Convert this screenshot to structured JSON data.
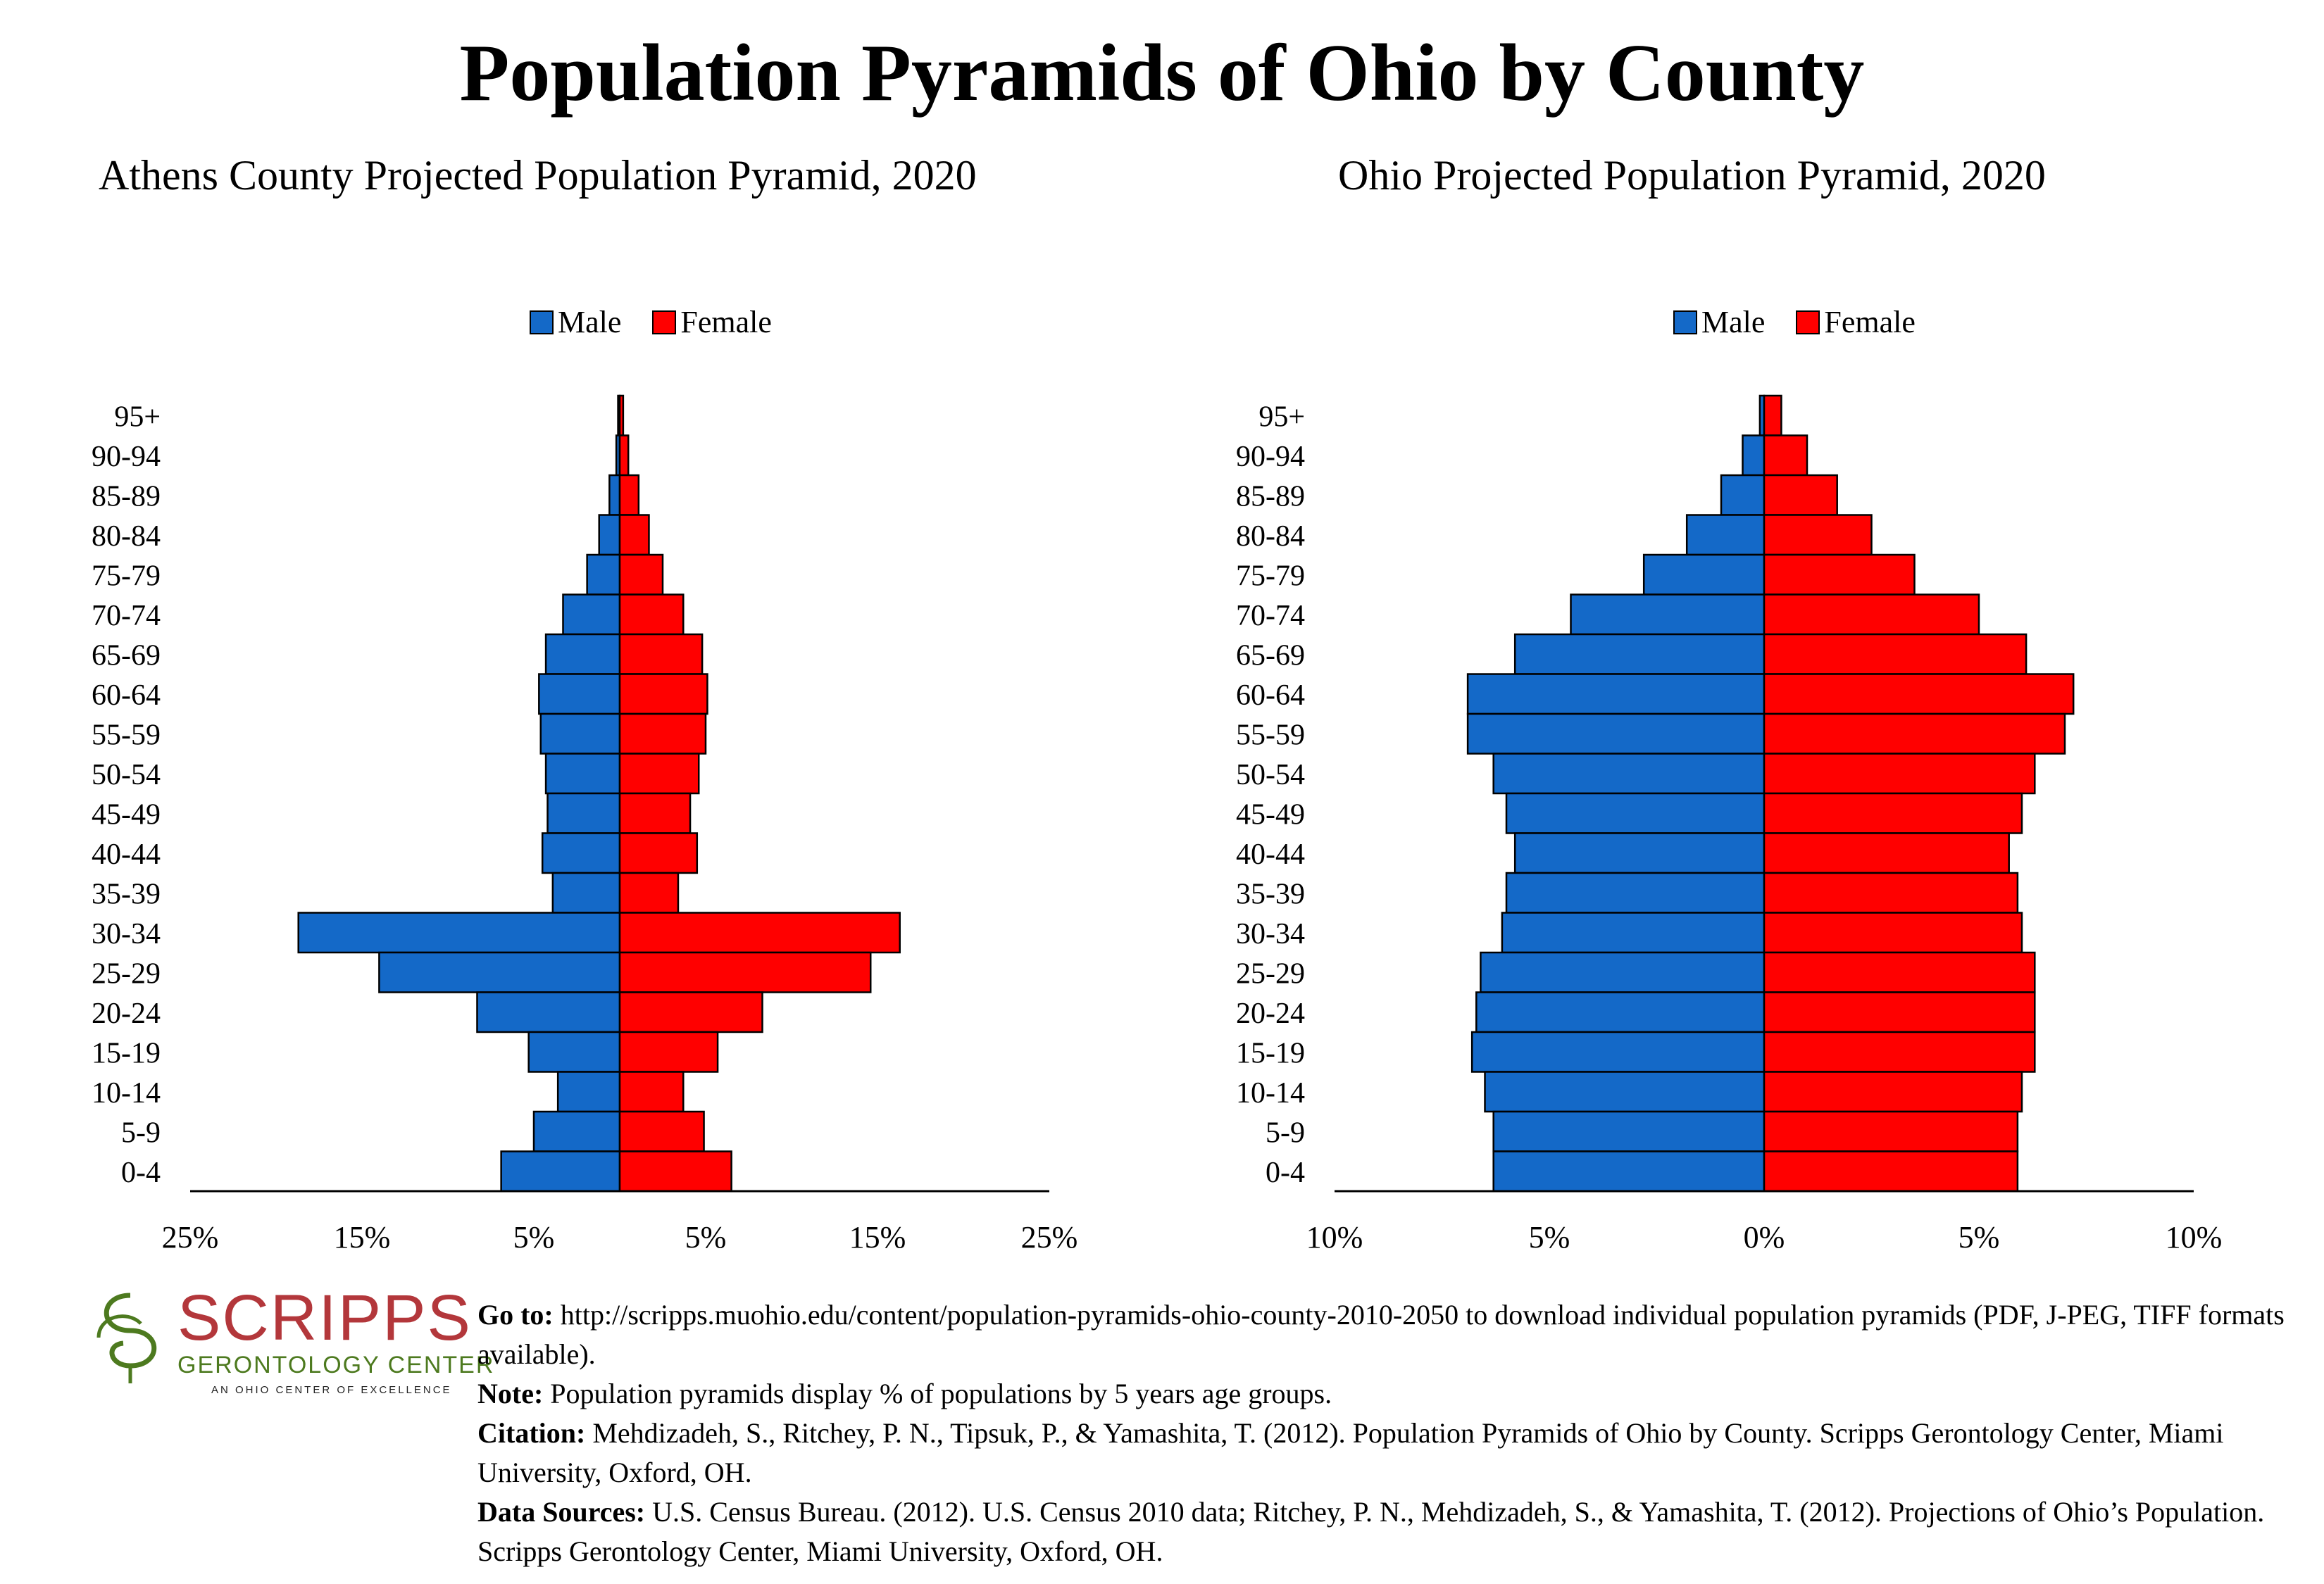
{
  "page_title": "Population Pyramids of Ohio by County",
  "colors": {
    "male": "#1469c8",
    "female": "#ff0000",
    "axis": "#000000"
  },
  "legend": {
    "male": "Male",
    "female": "Female"
  },
  "age_groups": [
    "95+",
    "90-94",
    "85-89",
    "80-84",
    "75-79",
    "70-74",
    "65-69",
    "60-64",
    "55-59",
    "50-54",
    "45-49",
    "40-44",
    "35-39",
    "30-34",
    "25-29",
    "20-24",
    "15-19",
    "10-14",
    "5-9",
    "0-4"
  ],
  "chart_data": [
    {
      "type": "bar",
      "orientation": "horizontal-pyramid",
      "title": "Athens County Projected Population Pyramid, 2020",
      "categories": [
        "95+",
        "90-94",
        "85-89",
        "80-84",
        "75-79",
        "70-74",
        "65-69",
        "60-64",
        "55-59",
        "50-54",
        "45-49",
        "40-44",
        "35-39",
        "30-34",
        "25-29",
        "20-24",
        "15-19",
        "10-14",
        "5-9",
        "0-4"
      ],
      "series": [
        {
          "name": "Male",
          "values": [
            0.1,
            0.2,
            0.6,
            1.2,
            1.9,
            3.3,
            4.3,
            4.7,
            4.6,
            4.3,
            4.2,
            4.5,
            3.9,
            18.7,
            14.0,
            8.3,
            5.3,
            3.6,
            5.0,
            6.9
          ]
        },
        {
          "name": "Female",
          "values": [
            0.2,
            0.5,
            1.1,
            1.7,
            2.5,
            3.7,
            4.8,
            5.1,
            5.0,
            4.6,
            4.1,
            4.5,
            3.4,
            16.3,
            14.6,
            8.3,
            5.7,
            3.7,
            4.9,
            6.5
          ]
        }
      ],
      "xlim": [
        -25,
        25
      ],
      "xticks": [
        "25%",
        "15%",
        "5%",
        "5%",
        "15%",
        "25%"
      ],
      "legend_position": "top-center"
    },
    {
      "type": "bar",
      "orientation": "horizontal-pyramid",
      "title": "Ohio Projected Population Pyramid, 2020",
      "categories": [
        "95+",
        "90-94",
        "85-89",
        "80-84",
        "75-79",
        "70-74",
        "65-69",
        "60-64",
        "55-59",
        "50-54",
        "45-49",
        "40-44",
        "35-39",
        "30-34",
        "25-29",
        "20-24",
        "15-19",
        "10-14",
        "5-9",
        "0-4"
      ],
      "series": [
        {
          "name": "Male",
          "values": [
            0.1,
            0.5,
            1.0,
            1.8,
            2.8,
            4.5,
            5.8,
            6.9,
            6.9,
            6.3,
            6.0,
            5.8,
            6.0,
            6.1,
            6.6,
            6.7,
            6.8,
            6.5,
            6.3,
            6.3
          ]
        },
        {
          "name": "Female",
          "values": [
            0.4,
            1.0,
            1.7,
            2.5,
            3.5,
            5.0,
            6.1,
            7.2,
            7.0,
            6.3,
            6.0,
            5.7,
            5.9,
            6.0,
            6.3,
            6.3,
            6.3,
            6.0,
            5.9,
            5.9
          ]
        }
      ],
      "xlim": [
        -10,
        10
      ],
      "xticks": [
        "10%",
        "5%",
        "0%",
        "5%",
        "10%"
      ],
      "legend_position": "top-center"
    }
  ],
  "logo": {
    "word": "SCRIPPS",
    "sub": "GERONTOLOGY CENTER",
    "tag": "AN OHIO CENTER OF EXCELLENCE"
  },
  "notes": {
    "goto_label": "Go to:",
    "goto_text": "http://scripps.muohio.edu/content/population-pyramids-ohio-county-2010-2050 to download individual population pyramids (PDF, J-PEG, TIFF formats available).",
    "note_label": "Note:",
    "note_text": "Population pyramids display % of populations by 5 years age groups.",
    "citation_label": "Citation:",
    "citation_text": "Mehdizadeh, S., Ritchey, P. N., Tipsuk, P., & Yamashita, T. (2012). Population Pyramids of Ohio by County. Scripps Gerontology Center, Miami University, Oxford, OH.",
    "sources_label": "Data Sources:",
    "sources_text": "U.S. Census Bureau. (2012). U.S. Census 2010 data; Ritchey, P. N., Mehdizadeh, S., & Yamashita, T. (2012). Projections of Ohio’s Population. Scripps Gerontology Center, Miami University, Oxford, OH."
  }
}
